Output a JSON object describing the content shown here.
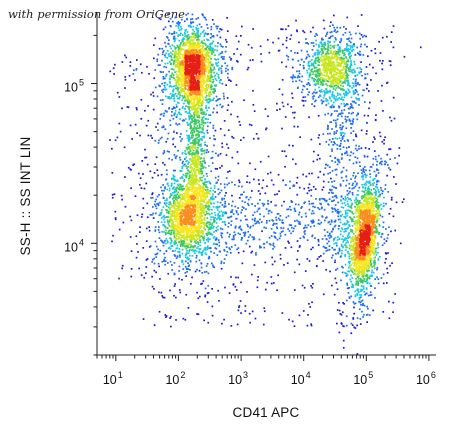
{
  "watermark": "with permission from OriGene",
  "chart_data": {
    "type": "scatter",
    "style": "flow cytometry density dot plot",
    "xlabel": "CD41 APC",
    "ylabel": "SS-H :: SS INT LIN",
    "x_scale": "log",
    "y_scale": "log",
    "xlim": [
      5,
      1300000
    ],
    "ylim": [
      2000,
      280000
    ],
    "x_ticks": [
      {
        "base": "10",
        "exp": "1",
        "value": 10
      },
      {
        "base": "10",
        "exp": "2",
        "value": 100
      },
      {
        "base": "10",
        "exp": "3",
        "value": 1000
      },
      {
        "base": "10",
        "exp": "4",
        "value": 10000
      },
      {
        "base": "10",
        "exp": "5",
        "value": 100000
      },
      {
        "base": "10",
        "exp": "6",
        "value": 1000000
      }
    ],
    "y_ticks": [
      {
        "base": "10",
        "exp": "4",
        "value": 10000
      },
      {
        "base": "10",
        "exp": "5",
        "value": 100000
      }
    ],
    "grid": false,
    "density_colors": [
      "#1a1adc",
      "#1e6cf0",
      "#18c8e6",
      "#3ec864",
      "#c8e61e",
      "#fae61e",
      "#fa8c1e",
      "#e61e14"
    ],
    "populations": [
      {
        "x_center": 170,
        "y_center": 125000,
        "note": "upper-left cluster, highest density"
      },
      {
        "x_center": 150,
        "y_center": 15000,
        "note": "lower-left cluster"
      },
      {
        "x_center": 27000,
        "y_center": 125000,
        "note": "upper-right cluster"
      },
      {
        "x_center": 95000,
        "y_center": 11000,
        "note": "lower-right cluster, CD41 positive"
      }
    ]
  }
}
